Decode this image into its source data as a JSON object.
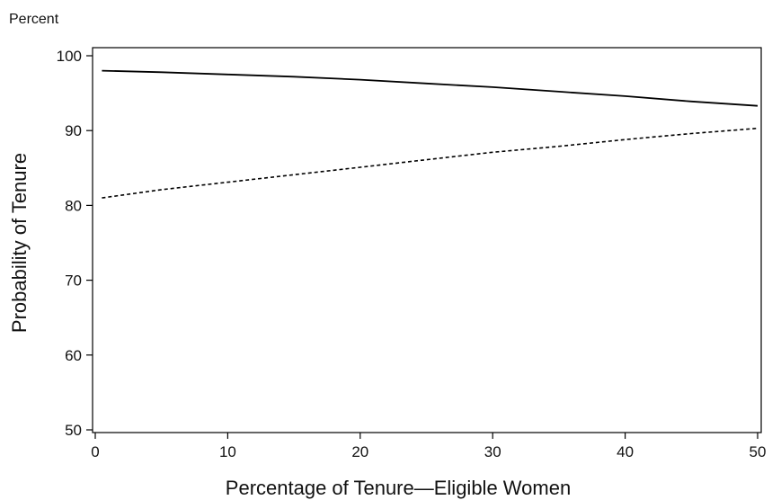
{
  "chart_data": {
    "type": "line",
    "unit_label": "Percent",
    "xlabel": "Percentage of Tenure—Eligible Women",
    "ylabel": "Probability of Tenure",
    "xlim": [
      0,
      50
    ],
    "ylim": [
      50,
      100
    ],
    "xticks": [
      0,
      10,
      20,
      30,
      40,
      50
    ],
    "yticks": [
      50,
      60,
      70,
      80,
      90,
      100
    ],
    "grid": false,
    "legend": "none",
    "series": [
      {
        "style": "solid",
        "color": "#000000",
        "x": [
          0.5,
          5,
          10,
          15,
          20,
          25,
          30,
          35,
          40,
          45,
          50
        ],
        "y": [
          98.0,
          97.8,
          97.5,
          97.2,
          96.8,
          96.3,
          95.8,
          95.2,
          94.6,
          93.9,
          93.3
        ]
      },
      {
        "style": "dashed",
        "color": "#000000",
        "x": [
          0.5,
          5,
          10,
          15,
          20,
          25,
          30,
          35,
          40,
          45,
          50
        ],
        "y": [
          81.0,
          82.1,
          83.1,
          84.1,
          85.1,
          86.1,
          87.1,
          87.9,
          88.8,
          89.6,
          90.3
        ]
      }
    ]
  }
}
